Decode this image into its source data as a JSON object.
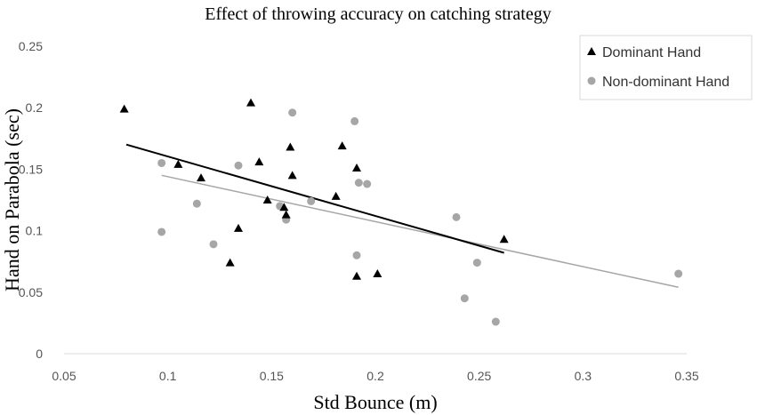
{
  "chart_data": {
    "type": "scatter",
    "title": "Effect of throwing accuracy on catching strategy",
    "xlabel": "Std Bounce (m)",
    "ylabel": "Hand on Parabola (sec)",
    "xlim": [
      0.05,
      0.35
    ],
    "ylim": [
      0,
      0.25
    ],
    "x_ticks": [
      "0.05",
      "0.1",
      "0.15",
      "0.2",
      "0.25",
      "0.3",
      "0.35"
    ],
    "y_ticks": [
      "0",
      "0.05",
      "0.1",
      "0.15",
      "0.2",
      "0.25"
    ],
    "grid": false,
    "legend_position": "top-right",
    "series": [
      {
        "name": "Dominant Hand",
        "marker": "triangle",
        "color": "#000000",
        "points": [
          [
            0.079,
            0.199
          ],
          [
            0.105,
            0.154
          ],
          [
            0.116,
            0.143
          ],
          [
            0.13,
            0.074
          ],
          [
            0.134,
            0.102
          ],
          [
            0.14,
            0.204
          ],
          [
            0.144,
            0.156
          ],
          [
            0.148,
            0.125
          ],
          [
            0.156,
            0.119
          ],
          [
            0.157,
            0.113
          ],
          [
            0.159,
            0.168
          ],
          [
            0.16,
            0.145
          ],
          [
            0.181,
            0.128
          ],
          [
            0.184,
            0.169
          ],
          [
            0.191,
            0.151
          ],
          [
            0.191,
            0.063
          ],
          [
            0.201,
            0.065
          ],
          [
            0.262,
            0.093
          ]
        ],
        "trend": [
          [
            0.08,
            0.17
          ],
          [
            0.262,
            0.082
          ]
        ]
      },
      {
        "name": "Non-dominant Hand",
        "marker": "circle",
        "color": "#a6a6a6",
        "points": [
          [
            0.097,
            0.155
          ],
          [
            0.097,
            0.099
          ],
          [
            0.114,
            0.122
          ],
          [
            0.122,
            0.089
          ],
          [
            0.134,
            0.153
          ],
          [
            0.154,
            0.12
          ],
          [
            0.157,
            0.109
          ],
          [
            0.16,
            0.196
          ],
          [
            0.169,
            0.124
          ],
          [
            0.19,
            0.189
          ],
          [
            0.191,
            0.08
          ],
          [
            0.192,
            0.139
          ],
          [
            0.196,
            0.138
          ],
          [
            0.239,
            0.111
          ],
          [
            0.243,
            0.045
          ],
          [
            0.249,
            0.074
          ],
          [
            0.258,
            0.026
          ],
          [
            0.346,
            0.065
          ]
        ],
        "trend": [
          [
            0.097,
            0.145
          ],
          [
            0.346,
            0.054
          ]
        ]
      }
    ]
  }
}
